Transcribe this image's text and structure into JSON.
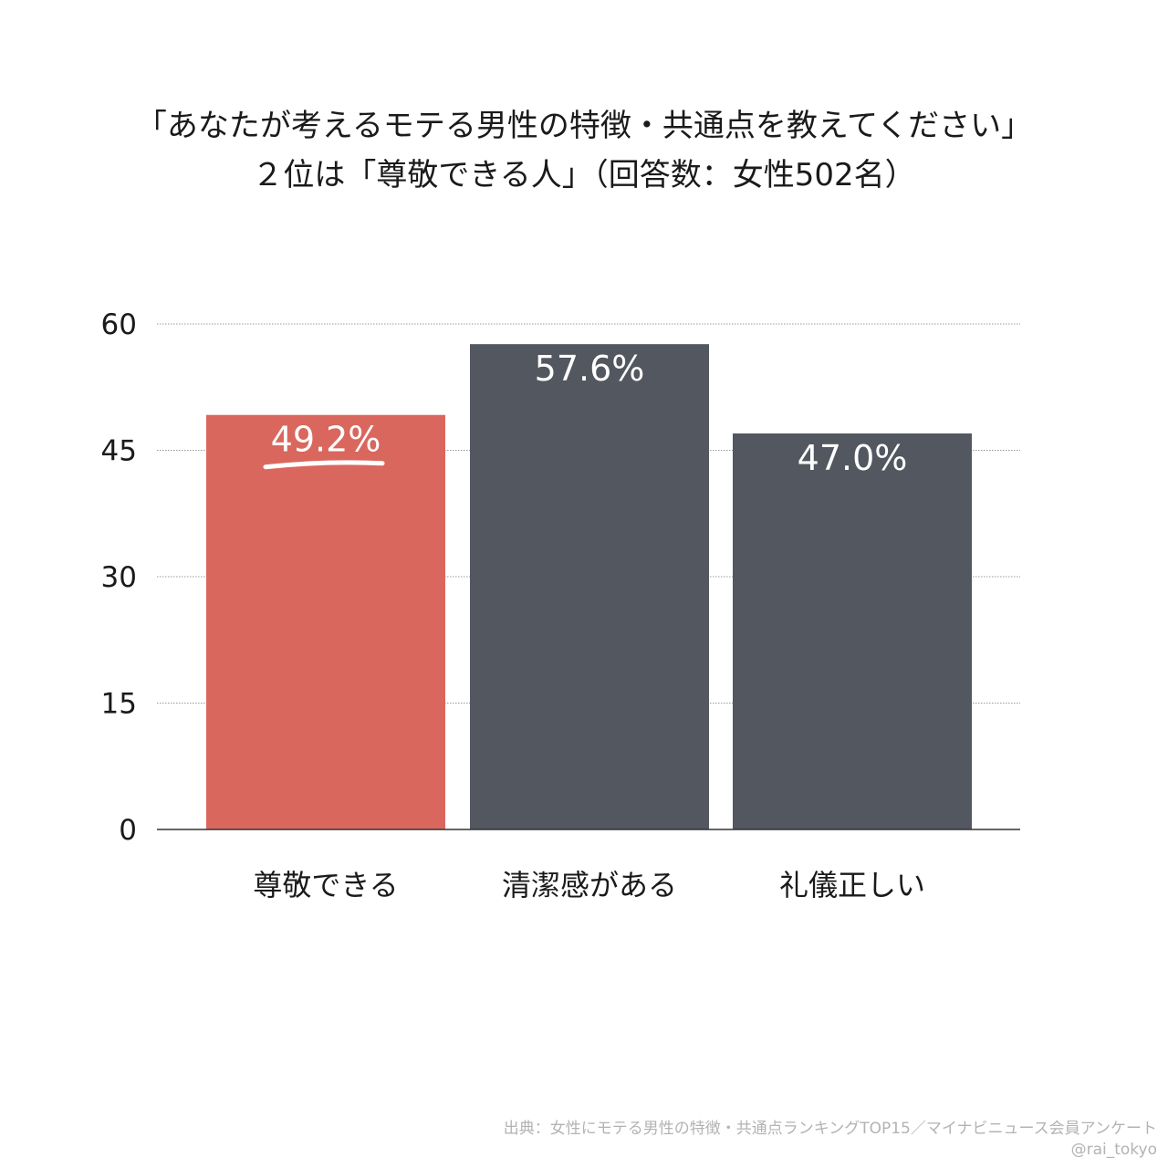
{
  "title": {
    "line1": "「あなたが考えるモテる男性の特徴・共通点を教えてください」",
    "line2": "２位は「尊敬できる人」（回答数：女性502名）"
  },
  "colors": {
    "highlight": "#da675e",
    "bar": "#53575f",
    "value_label": "#ffffff",
    "grid": "#999999",
    "axis": "#333333"
  },
  "chart_data": {
    "type": "bar",
    "categories": [
      "尊敬できる",
      "清潔感がある",
      "礼儀正しい"
    ],
    "values": [
      49.2,
      57.6,
      47.0
    ],
    "value_labels": [
      "49.2%",
      "57.6%",
      "47.0%"
    ],
    "highlight_index": 0,
    "ylim": [
      0,
      60
    ],
    "yticks": [
      "0",
      "15",
      "30",
      "45",
      "60"
    ],
    "grid": true
  },
  "footer": {
    "source": "出典：女性にモテる男性の特徴・共通点ランキングTOP15／マイナビニュース会員アンケート",
    "handle": "@rai_tokyo"
  }
}
